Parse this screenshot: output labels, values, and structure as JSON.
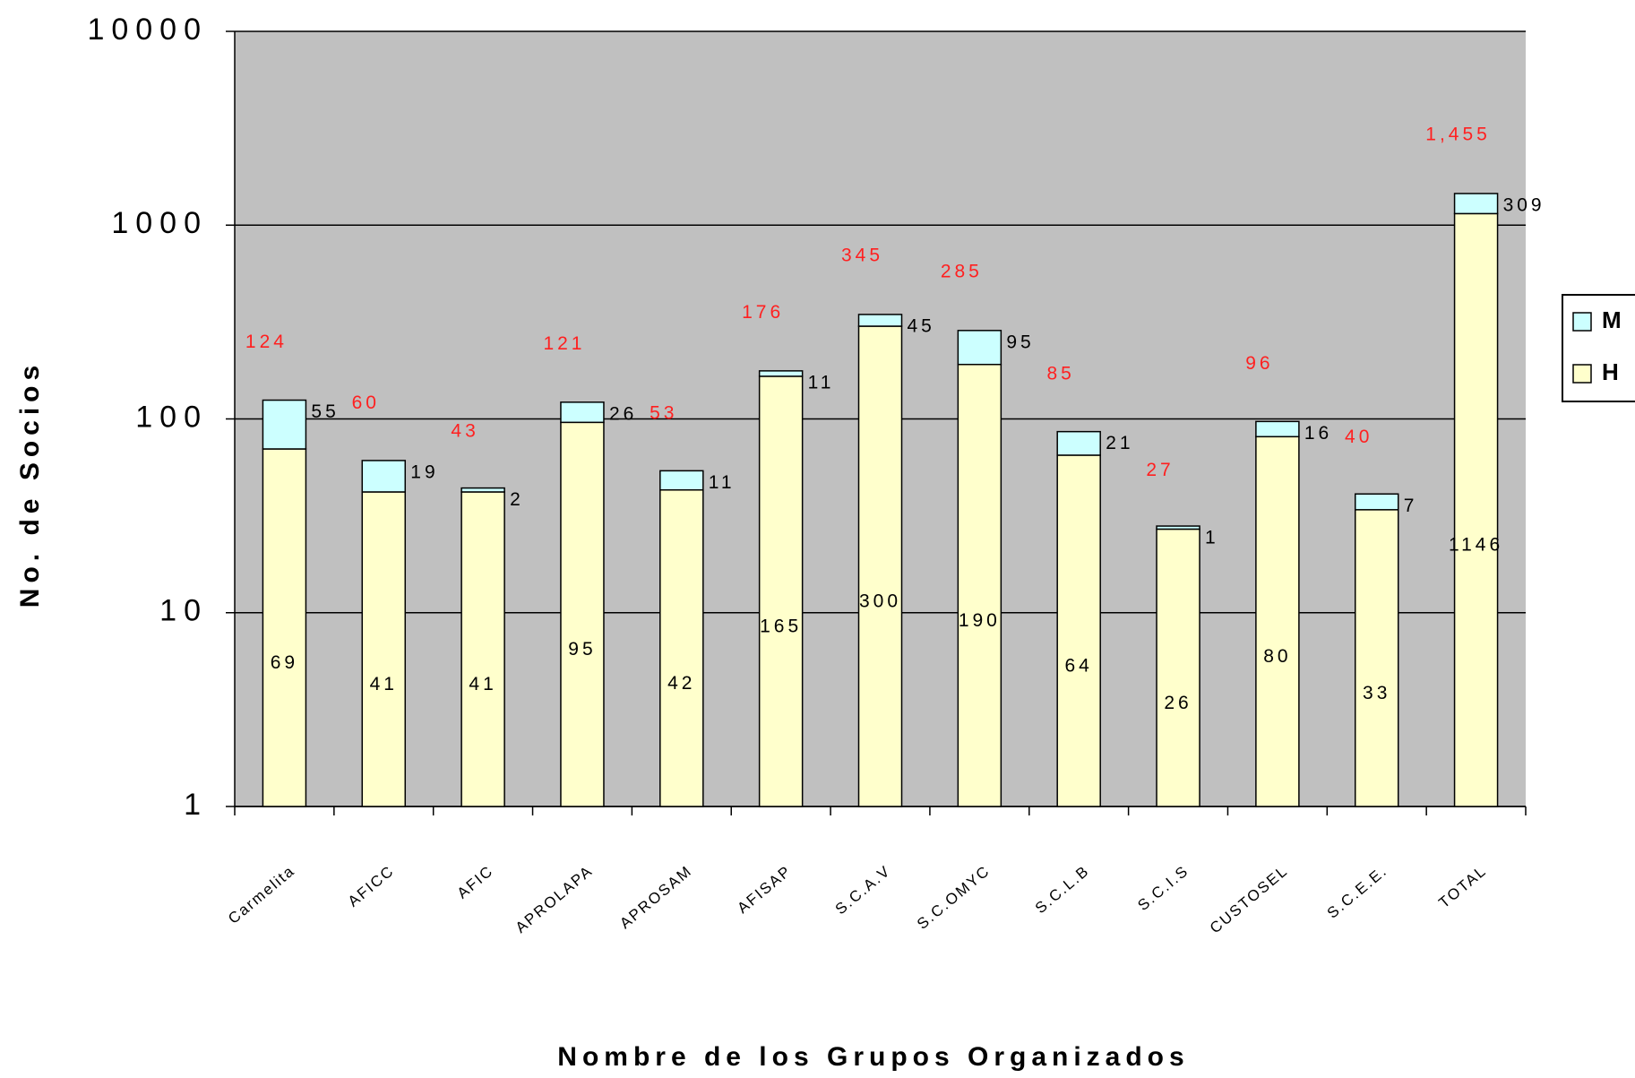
{
  "chart_data": {
    "type": "bar",
    "stacked": true,
    "log_scale": true,
    "xlabel": "Nombre de los Grupos Organizados",
    "ylabel": "No. de Socios",
    "categories": [
      "Carmelita",
      "AFICC",
      "AFIC",
      "APROLAPA",
      "APROSAM",
      "AFISAP",
      "S.C.A.V",
      "S.C.OMYC",
      "S.C.L.B",
      "S.C.I.S",
      "CUSTOSEL",
      "S.C.E.E.",
      "TOTAL"
    ],
    "series": [
      {
        "name": "H",
        "color": "#ffffcc",
        "values": [
          69,
          41,
          41,
          95,
          42,
          165,
          300,
          190,
          64,
          26,
          80,
          33,
          1146
        ]
      },
      {
        "name": "M",
        "color": "#ccffff",
        "values": [
          55,
          19,
          2,
          26,
          11,
          11,
          45,
          95,
          21,
          1,
          16,
          7,
          309
        ]
      }
    ],
    "totals": [
      124,
      60,
      43,
      121,
      53,
      176,
      345,
      285,
      85,
      27,
      96,
      40,
      1455
    ],
    "total_labels": [
      "124",
      "60",
      "43",
      "121",
      "53",
      "176",
      "345",
      "285",
      "85",
      "27",
      "96",
      "40",
      "1,455"
    ],
    "ylim": [
      1,
      10000
    ],
    "yticks": [
      1,
      10,
      100,
      1000,
      10000
    ],
    "grid": true,
    "legend": "right",
    "background": "#c0c0c0"
  }
}
